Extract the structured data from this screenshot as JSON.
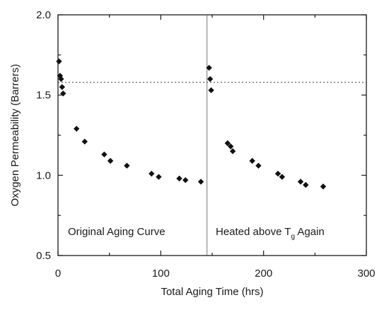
{
  "chart_data": {
    "type": "scatter",
    "title": "",
    "xlabel": "Total Aging Time (hrs)",
    "ylabel": "Oxygen Permeability (Barrers)",
    "xlim": [
      0,
      300
    ],
    "ylim": [
      0.5,
      2.0
    ],
    "x_ticks": [
      "0",
      "100",
      "200",
      "300"
    ],
    "y_ticks": [
      "0.5",
      "1.0",
      "1.5",
      "2.0"
    ],
    "x_tick_values": [
      0,
      100,
      200,
      300
    ],
    "y_tick_values": [
      0.5,
      1.0,
      1.5,
      2.0
    ],
    "grid": false,
    "reference_lines": {
      "horizontal_y": 1.58,
      "vertical_x": 145
    },
    "annotations": {
      "left": "Original Aging Curve",
      "right_prefix": "Heated above T",
      "right_sub": "g",
      "right_suffix": " Again"
    },
    "series": [
      {
        "points": [
          [
            1,
            1.71
          ],
          [
            2,
            1.62
          ],
          [
            3,
            1.6
          ],
          [
            4,
            1.55
          ],
          [
            5,
            1.51
          ],
          [
            18,
            1.29
          ],
          [
            26,
            1.21
          ],
          [
            45,
            1.13
          ],
          [
            51,
            1.09
          ],
          [
            67,
            1.06
          ],
          [
            91,
            1.01
          ],
          [
            98,
            0.99
          ],
          [
            118,
            0.98
          ],
          [
            124,
            0.97
          ],
          [
            139,
            0.96
          ],
          [
            147,
            1.67
          ],
          [
            148,
            1.6
          ],
          [
            149,
            1.53
          ],
          [
            165,
            1.2
          ],
          [
            168,
            1.18
          ],
          [
            170,
            1.15
          ],
          [
            189,
            1.09
          ],
          [
            195,
            1.06
          ],
          [
            214,
            1.01
          ],
          [
            218,
            0.99
          ],
          [
            236,
            0.96
          ],
          [
            241,
            0.94
          ],
          [
            258,
            0.93
          ]
        ]
      }
    ]
  }
}
